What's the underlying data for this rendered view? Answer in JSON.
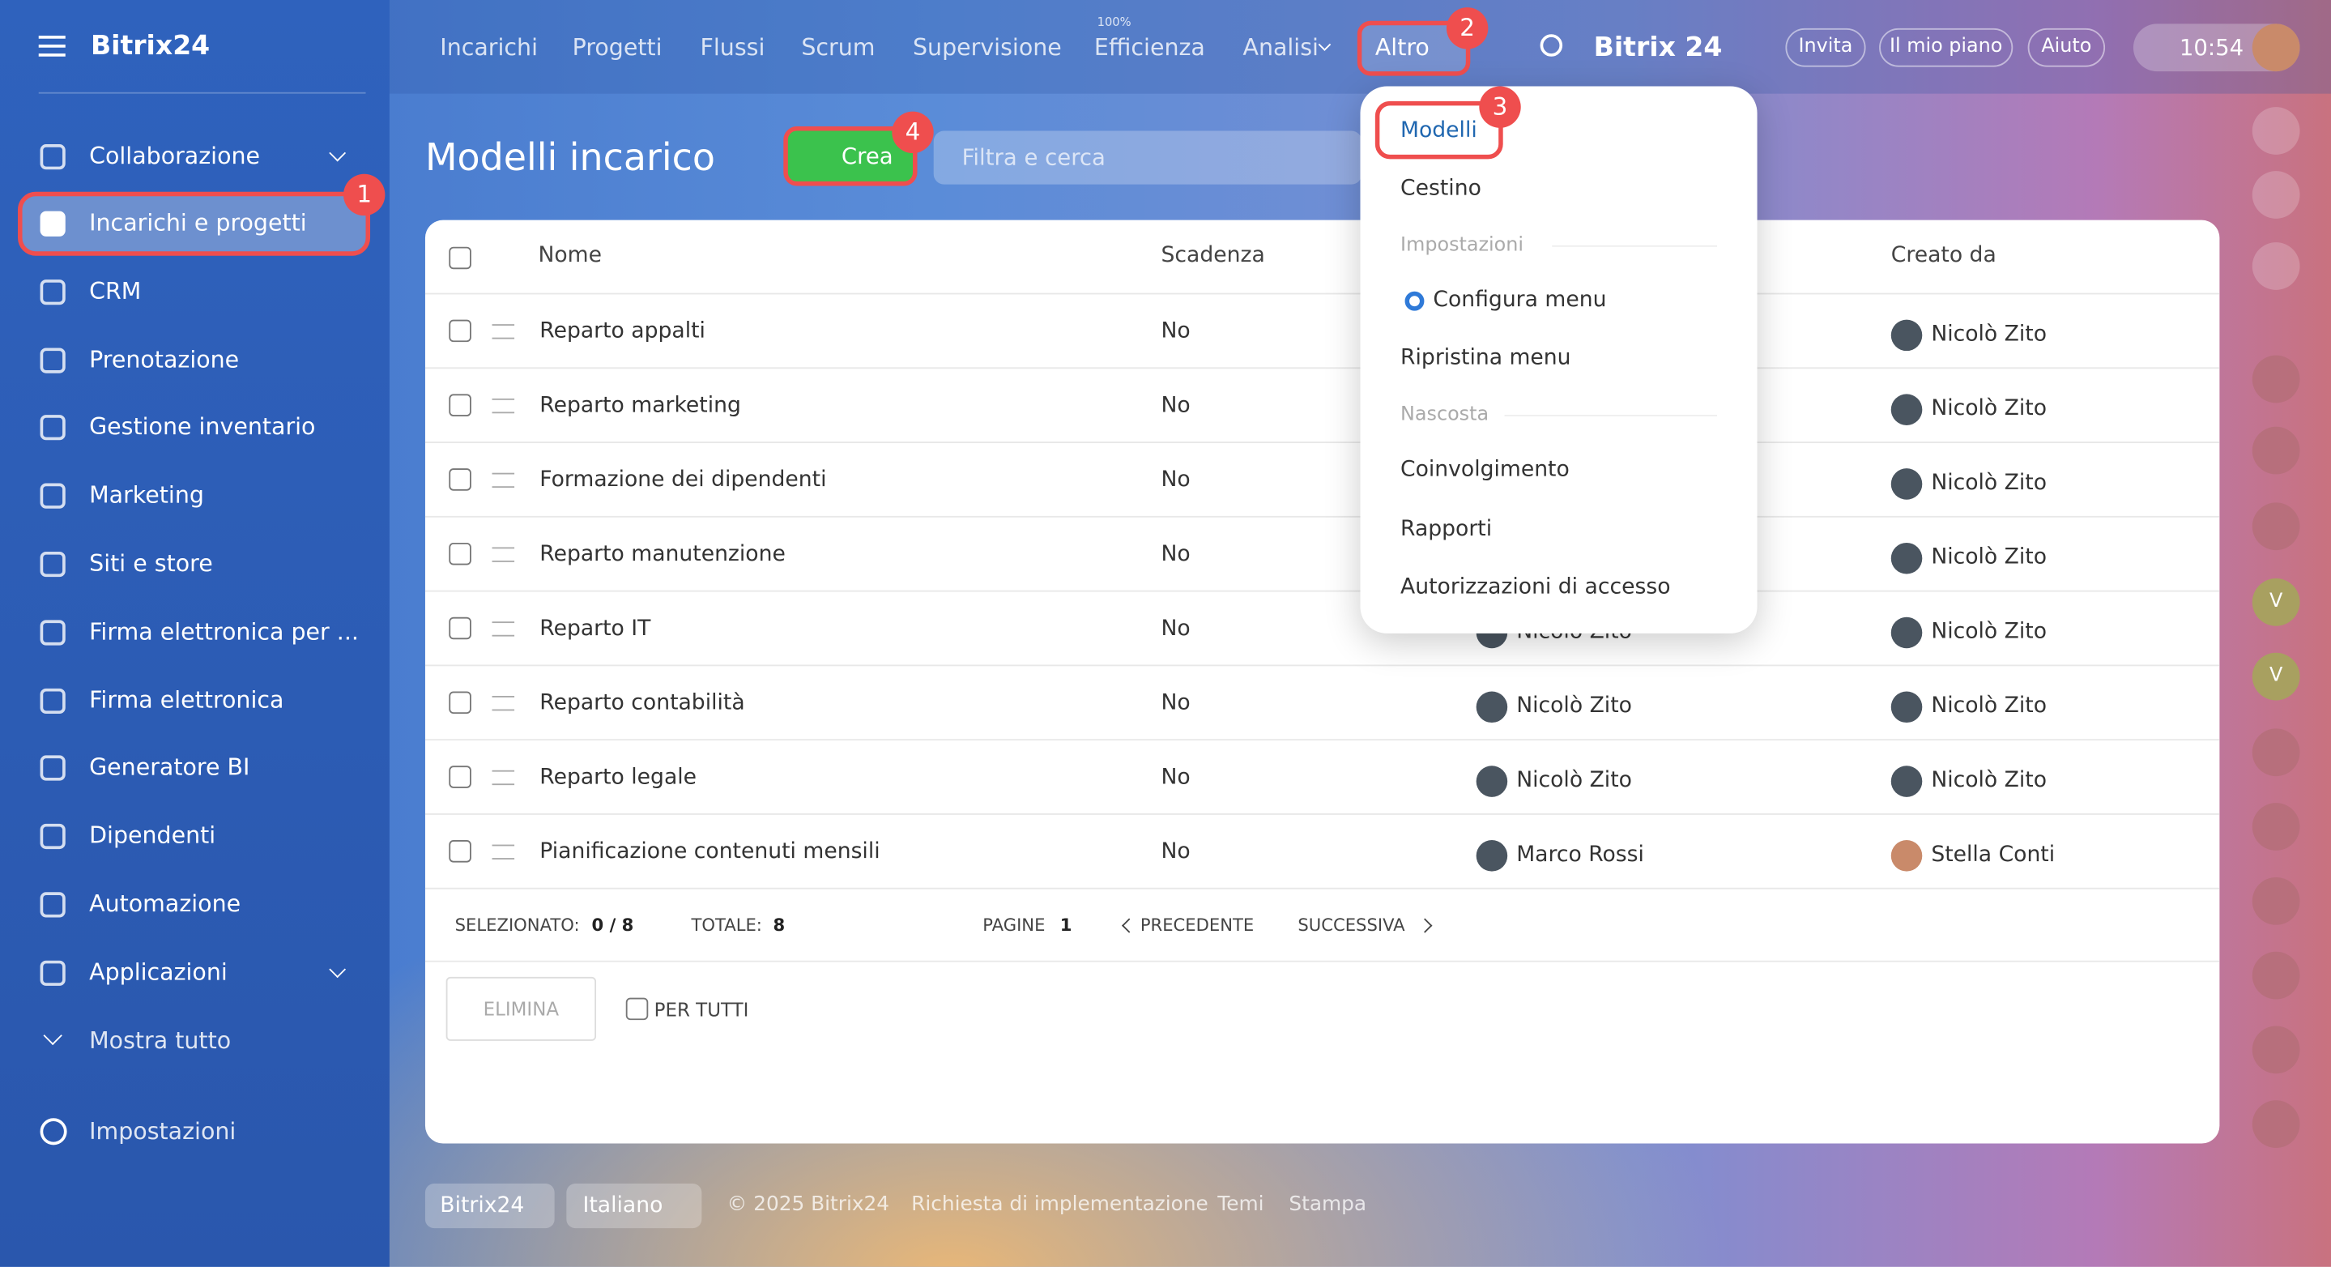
{
  "sidebar": {
    "brand": "Bitrix24",
    "items": [
      "Collaborazione",
      "Incarichi e progetti",
      "CRM",
      "Prenotazione",
      "Gestione inventario",
      "Marketing",
      "Siti e store",
      "Firma elettronica per ...",
      "Firma elettronica",
      "Generatore BI",
      "Dipendenti",
      "Automazione",
      "Applicazioni"
    ],
    "show_all": "Mostra tutto",
    "settings": "Impostazioni"
  },
  "topnav": {
    "items": [
      "Incarichi",
      "Progetti",
      "Flussi",
      "Scrum",
      "Supervisione",
      "Efficienza",
      "Analisi",
      "Altro"
    ],
    "efficiency_badge": "100%",
    "brand": "Bitrix 24",
    "buttons": [
      "Invita",
      "Il mio piano",
      "Aiuto"
    ],
    "time": "10:54"
  },
  "page": {
    "title": "Modelli incarico",
    "create": "Crea",
    "search_placeholder": "Filtra e cerca"
  },
  "table": {
    "headers": [
      "Nome",
      "Scadenza",
      "Creato da"
    ],
    "rows": [
      {
        "name": "Reparto appalti",
        "deadline": "No",
        "creator": "Nicolò Zito"
      },
      {
        "name": "Reparto marketing",
        "deadline": "No",
        "creator": "Nicolò Zito"
      },
      {
        "name": "Formazione dei dipendenti",
        "deadline": "No",
        "creator": "Nicolò Zito"
      },
      {
        "name": "Reparto manutenzione",
        "deadline": "No",
        "creator": "Nicolò Zito"
      },
      {
        "name": "Reparto IT",
        "deadline": "No",
        "assignee": "Nicolò Zito",
        "creator": "Nicolò Zito"
      },
      {
        "name": "Reparto contabilità",
        "deadline": "No",
        "assignee": "Nicolò Zito",
        "creator": "Nicolò Zito"
      },
      {
        "name": "Reparto legale",
        "deadline": "No",
        "assignee": "Nicolò Zito",
        "creator": "Nicolò Zito"
      },
      {
        "name": "Pianificazione contenuti mensili",
        "deadline": "No",
        "assignee": "Marco Rossi",
        "creator": "Stella Conti"
      }
    ],
    "footer": {
      "selected_label": "SELEZIONATO:",
      "selected": "0 / 8",
      "total_label": "TOTALE:",
      "total": "8",
      "pages_label": "PAGINE",
      "page": "1",
      "prev": "PRECEDENTE",
      "next": "SUCCESSIVA"
    },
    "actions": {
      "delete": "ELIMINA",
      "for_all": "PER TUTTI"
    }
  },
  "dropdown": {
    "items": [
      {
        "label": "Modelli"
      },
      {
        "label": "Cestino"
      },
      {
        "section": "Impostazioni"
      },
      {
        "label": "Configura menu"
      },
      {
        "label": "Ripristina menu"
      },
      {
        "section": "Nascosta"
      },
      {
        "label": "Coinvolgimento"
      },
      {
        "label": "Rapporti"
      },
      {
        "label": "Autorizzazioni di accesso"
      }
    ]
  },
  "footer": {
    "brand": "Bitrix24",
    "language": "Italiano",
    "copyright": "© 2025 Bitrix24",
    "links": [
      "Richiesta di implementazione",
      "Temi",
      "Stampa"
    ]
  },
  "rail": {
    "letters": [
      "V",
      "V"
    ]
  },
  "callouts": [
    "1",
    "2",
    "3",
    "4"
  ]
}
